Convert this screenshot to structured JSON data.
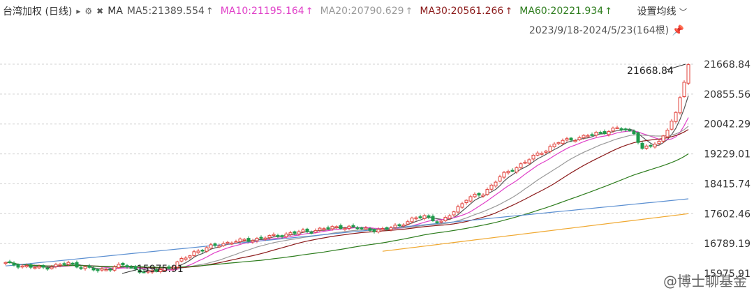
{
  "header": {
    "title": "台湾加权 (日线)",
    "ma_label": "MA",
    "indicators": [
      {
        "label": "MA5:21389.554",
        "color": "#555555",
        "arrow": "↑"
      },
      {
        "label": "MA10:21195.164",
        "color": "#e040c8",
        "arrow": "↑"
      },
      {
        "label": "MA20:20790.629",
        "color": "#9a9a9a",
        "arrow": "↑"
      },
      {
        "label": "MA30:20561.266",
        "color": "#8b1a1a",
        "arrow": "↑"
      },
      {
        "label": "MA60:20221.934",
        "color": "#2e7d1e",
        "arrow": "↑"
      }
    ],
    "settings_label": "设置均线",
    "date_range": "2023/9/18-2024/5/23(164根)"
  },
  "chart_data": {
    "type": "line",
    "y_ticks": [
      "21668.84",
      "20855.56",
      "20042.29",
      "19229.01",
      "18415.74",
      "17602.46",
      "16789.19",
      "15975.91"
    ],
    "ylim": [
      15975.91,
      21668.84
    ],
    "annotations": [
      {
        "text": "21668.84",
        "y": 21668.84
      },
      {
        "text": "15975.91",
        "y": 15975.91
      }
    ],
    "series": [
      {
        "key": "price",
        "color": "#222222"
      },
      {
        "key": "ma5",
        "color": "#555555"
      },
      {
        "key": "ma10",
        "color": "#e040c8"
      },
      {
        "key": "ma20",
        "color": "#9a9a9a"
      },
      {
        "key": "ma30",
        "color": "#8b1a1a"
      },
      {
        "key": "ma60",
        "color": "#2e7d1e"
      },
      {
        "key": "ma120",
        "color": "#5b8fd1"
      },
      {
        "key": "ma250",
        "color": "#f0a830"
      }
    ],
    "colors": {
      "up": "#e0403a",
      "down": "#1e9a4a",
      "grid": "#d0d0d0"
    }
  },
  "watermark": "@博士聊基金"
}
